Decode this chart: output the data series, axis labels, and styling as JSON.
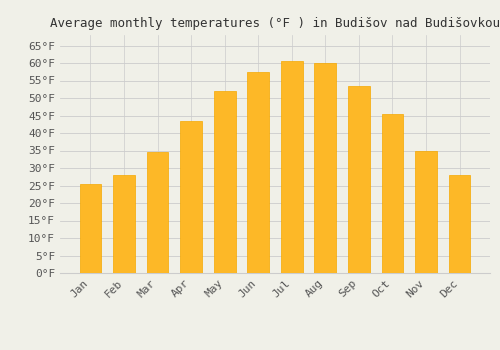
{
  "title": "Average monthly temperatures (°F ) in Budišov nad Budišovkou",
  "months": [
    "Jan",
    "Feb",
    "Mar",
    "Apr",
    "May",
    "Jun",
    "Jul",
    "Aug",
    "Sep",
    "Oct",
    "Nov",
    "Dec"
  ],
  "values": [
    25.5,
    28.0,
    34.5,
    43.5,
    52.0,
    57.5,
    60.5,
    60.0,
    53.5,
    45.5,
    35.0,
    28.0
  ],
  "bar_color": "#FDB827",
  "bar_edge_color": "#F5A800",
  "background_color": "#f0f0e8",
  "grid_color": "#cccccc",
  "text_color": "#555555",
  "ylim": [
    0,
    68
  ],
  "yticks": [
    0,
    5,
    10,
    15,
    20,
    25,
    30,
    35,
    40,
    45,
    50,
    55,
    60,
    65
  ],
  "title_fontsize": 9,
  "tick_fontsize": 8,
  "font_family": "monospace"
}
